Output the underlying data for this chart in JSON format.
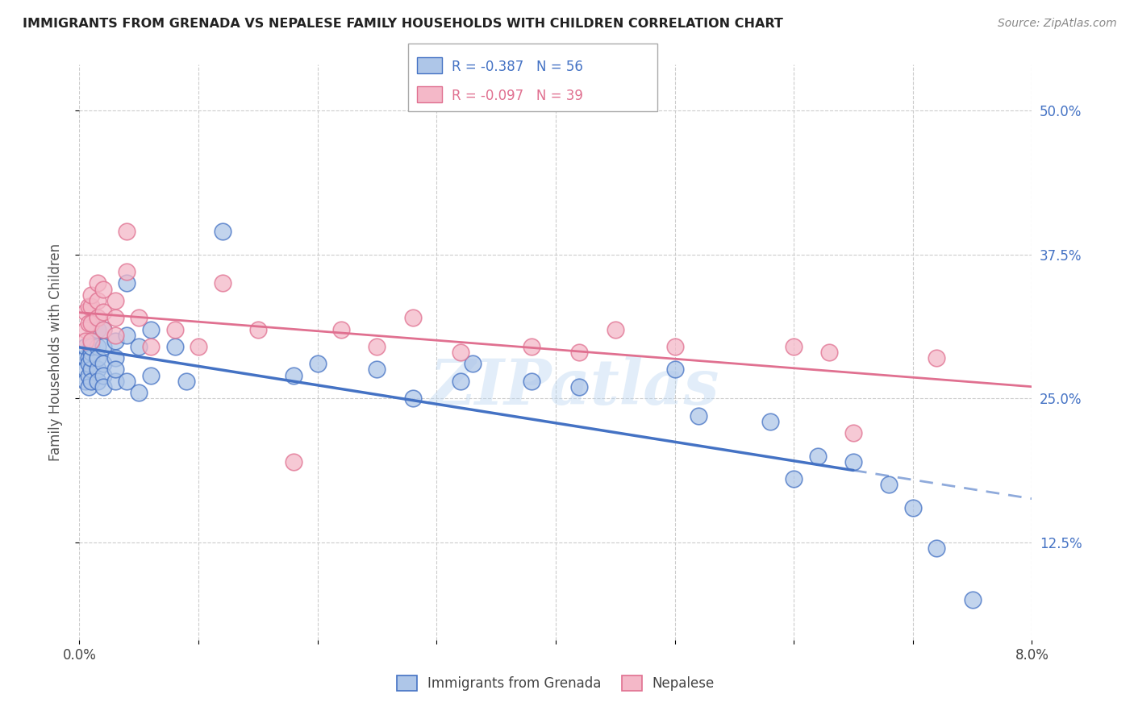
{
  "title": "IMMIGRANTS FROM GRENADA VS NEPALESE FAMILY HOUSEHOLDS WITH CHILDREN CORRELATION CHART",
  "source_text": "Source: ZipAtlas.com",
  "ylabel": "Family Households with Children",
  "legend_label_1": "Immigrants from Grenada",
  "legend_label_2": "Nepalese",
  "R1": -0.387,
  "N1": 56,
  "R2": -0.097,
  "N2": 39,
  "color1": "#aec6e8",
  "color2": "#f4b8c8",
  "line_color1": "#4472c4",
  "line_color2": "#e07090",
  "xmin": 0.0,
  "xmax": 0.08,
  "ymin": 0.04,
  "ymax": 0.54,
  "yticks": [
    0.125,
    0.25,
    0.375,
    0.5
  ],
  "ytick_labels": [
    "12.5%",
    "25.0%",
    "37.5%",
    "50.0%"
  ],
  "xticks": [
    0.0,
    0.01,
    0.02,
    0.03,
    0.04,
    0.05,
    0.06,
    0.07,
    0.08
  ],
  "xtick_labels": [
    "0.0%",
    "",
    "",
    "",
    "",
    "",
    "",
    "",
    "8.0%"
  ],
  "background_color": "#ffffff",
  "watermark": "ZIPatlas",
  "scatter1_x": [
    0.0005,
    0.0005,
    0.0005,
    0.0005,
    0.0008,
    0.0008,
    0.0008,
    0.0008,
    0.001,
    0.001,
    0.001,
    0.001,
    0.001,
    0.001,
    0.0015,
    0.0015,
    0.0015,
    0.0015,
    0.0015,
    0.002,
    0.002,
    0.002,
    0.002,
    0.002,
    0.003,
    0.003,
    0.003,
    0.003,
    0.004,
    0.004,
    0.004,
    0.005,
    0.005,
    0.006,
    0.006,
    0.008,
    0.009,
    0.012,
    0.018,
    0.02,
    0.025,
    0.028,
    0.032,
    0.033,
    0.038,
    0.042,
    0.05,
    0.052,
    0.058,
    0.06,
    0.062,
    0.065,
    0.068,
    0.07,
    0.072,
    0.075
  ],
  "scatter1_y": [
    0.285,
    0.275,
    0.295,
    0.265,
    0.285,
    0.27,
    0.28,
    0.26,
    0.3,
    0.29,
    0.275,
    0.265,
    0.285,
    0.295,
    0.31,
    0.295,
    0.275,
    0.285,
    0.265,
    0.31,
    0.295,
    0.28,
    0.27,
    0.26,
    0.3,
    0.285,
    0.265,
    0.275,
    0.35,
    0.305,
    0.265,
    0.295,
    0.255,
    0.31,
    0.27,
    0.295,
    0.265,
    0.395,
    0.27,
    0.28,
    0.275,
    0.25,
    0.265,
    0.28,
    0.265,
    0.26,
    0.275,
    0.235,
    0.23,
    0.18,
    0.2,
    0.195,
    0.175,
    0.155,
    0.12,
    0.075
  ],
  "scatter2_x": [
    0.0005,
    0.0005,
    0.0005,
    0.0008,
    0.0008,
    0.001,
    0.001,
    0.001,
    0.001,
    0.0015,
    0.0015,
    0.0015,
    0.002,
    0.002,
    0.002,
    0.003,
    0.003,
    0.003,
    0.004,
    0.004,
    0.005,
    0.006,
    0.008,
    0.01,
    0.012,
    0.015,
    0.018,
    0.022,
    0.025,
    0.028,
    0.032,
    0.038,
    0.042,
    0.045,
    0.05,
    0.06,
    0.063,
    0.065,
    0.072
  ],
  "scatter2_y": [
    0.325,
    0.31,
    0.3,
    0.33,
    0.315,
    0.33,
    0.315,
    0.3,
    0.34,
    0.35,
    0.335,
    0.32,
    0.345,
    0.325,
    0.31,
    0.335,
    0.32,
    0.305,
    0.395,
    0.36,
    0.32,
    0.295,
    0.31,
    0.295,
    0.35,
    0.31,
    0.195,
    0.31,
    0.295,
    0.32,
    0.29,
    0.295,
    0.29,
    0.31,
    0.295,
    0.295,
    0.29,
    0.22,
    0.285
  ]
}
